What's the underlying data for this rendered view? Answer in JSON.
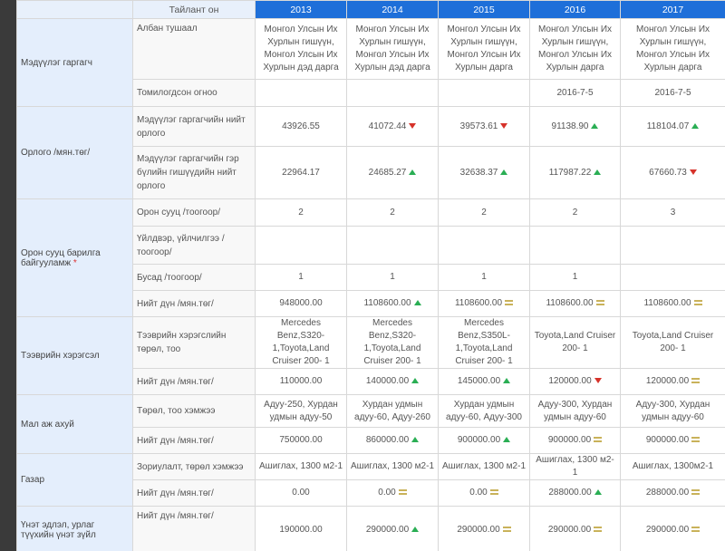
{
  "header": {
    "report_year_label": "Тайлант он",
    "years": [
      "2013",
      "2014",
      "2015",
      "2016",
      "2017"
    ]
  },
  "sections": {
    "declarant": {
      "label": "Мэдүүлэг гаргагч",
      "position_label": "Албан тушаал",
      "positions": [
        "Монгол Улсын Их Хурлын гишүүн, Монгол Улсын Их Хурлын дэд дарга",
        "Монгол Улсын Их Хурлын гишүүн, Монгол Улсын Их Хурлын дэд дарга",
        "Монгол Улсын Их Хурлын гишүүн, Монгол Улсын Их Хурлын дарга",
        "Монгол Улсын Их Хурлын гишүүн, Монгол Улсын Их Хурлын дарга",
        "Монгол Улсын Их Хурлын гишүүн, Монгол Улсын Их Хурлын дарга"
      ],
      "appointed_label": "Томилогдсон огноо",
      "appointed": [
        "",
        "",
        "",
        "2016-7-5",
        "2016-7-5"
      ]
    },
    "income": {
      "label": "Орлого /мян.төг/",
      "total_label": "Мэдүүлэг гаргагчийн нийт орлого",
      "total": [
        "43926.55",
        "41072.44",
        "39573.61",
        "91138.90",
        "118104.07"
      ],
      "total_trend": [
        "",
        "down",
        "down",
        "up",
        "up"
      ],
      "family_label": "Мэдүүлэг гаргагчийн гэр бүлийн гишүүдийн нийт орлого",
      "family": [
        "22964.17",
        "24685.27",
        "32638.37",
        "117987.22",
        "67660.73"
      ],
      "family_trend": [
        "",
        "up",
        "up",
        "up",
        "down"
      ]
    },
    "housing": {
      "label": "Орон сууц барилга байгууламж",
      "required_mark": "*",
      "apartment_label": "Орон сууц /тоогоор/",
      "apartment": [
        "2",
        "2",
        "2",
        "2",
        "3"
      ],
      "service_label": "Үйлдвэр, үйлчилгээ / тоогоор/",
      "service": [
        "",
        "",
        "",
        "",
        ""
      ],
      "other_label": "Бусад /тоогоор/",
      "other": [
        "1",
        "1",
        "1",
        "1",
        ""
      ],
      "sum_label": "Нийт дүн /мян.төг/",
      "sum": [
        "948000.00",
        "1108600.00",
        "1108600.00",
        "1108600.00",
        "1108600.00"
      ],
      "sum_trend": [
        "",
        "up",
        "eq",
        "eq",
        "eq"
      ]
    },
    "vehicles": {
      "label": "Тээврийн хэрэгсэл",
      "type_label": "Тээврийн хэрэгслийн төрөл, тоо",
      "types": [
        "Mercedes Benz,S320-1,Toyota,Land Cruiser 200- 1",
        "Mercedes Benz,S320-1,Toyota,Land Cruiser 200- 1",
        "Mercedes Benz,S350L-1,Toyota,Land Cruiser 200- 1",
        "Toyota,Land Cruiser 200- 1",
        "Toyota,Land Cruiser 200- 1"
      ],
      "sum_label": "Нийт дүн /мян.төг/",
      "sum": [
        "110000.00",
        "140000.00",
        "145000.00",
        "120000.00",
        "120000.00"
      ],
      "sum_trend": [
        "",
        "up",
        "up",
        "down",
        "eq"
      ]
    },
    "livestock": {
      "label": "Мал аж ахуй",
      "type_label": "Төрөл, тоо хэмжээ",
      "types": [
        "Адуу-250, Хурдан удмын адуу-50",
        "Хурдан удмын адуу-60, Адуу-260",
        "Хурдан удмын адуу-60, Адуу-300",
        "Адуу-300, Хурдан удмын адуу-60",
        "Адуу-300, Хурдан удмын адуу-60"
      ],
      "sum_label": "Нийт дүн /мян.төг/",
      "sum": [
        "750000.00",
        "860000.00",
        "900000.00",
        "900000.00",
        "900000.00"
      ],
      "sum_trend": [
        "",
        "up",
        "up",
        "eq",
        "eq"
      ]
    },
    "land": {
      "label": "Газар",
      "type_label": "Зориулалт, төрөл хэмжээ",
      "types": [
        "Ашиглах, 1300 м2-1",
        "Ашиглах, 1300 м2-1",
        "Ашиглах, 1300 м2-1",
        "Ашиглах, 1300 м2-1",
        "Ашиглах, 1300м2-1"
      ],
      "sum_label": "Нийт дүн /мян.төг/",
      "sum": [
        "0.00",
        "0.00",
        "0.00",
        "288000.00",
        "288000.00"
      ],
      "sum_trend": [
        "",
        "eq",
        "eq",
        "up",
        "eq"
      ]
    },
    "valuables": {
      "label": "Үнэт эдлэл, урлаг түүхийн үнэт зүйл",
      "sum_label": "Нийт дүн /мян.төг/",
      "sum": [
        "190000.00",
        "290000.00",
        "290000.00",
        "290000.00",
        "290000.00"
      ],
      "sum_trend": [
        "",
        "up",
        "eq",
        "eq",
        "eq"
      ]
    }
  },
  "colors": {
    "header_blue": "#1e6fd9",
    "category_bg": "#e4eefc",
    "up_green": "#2aae54",
    "down_red": "#d6322a",
    "equal_gold": "#c9b25a"
  }
}
